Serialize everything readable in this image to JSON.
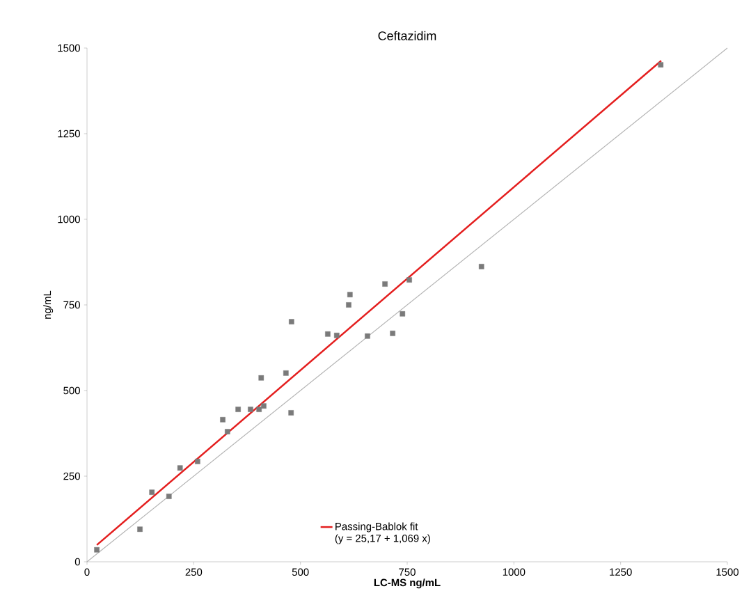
{
  "chart_data": {
    "type": "scatter",
    "title": "Ceftazidim",
    "xlabel": "LC-MS  ng/mL",
    "ylabel": "ng/mL",
    "xlim": [
      0,
      1500
    ],
    "ylim": [
      0,
      1500
    ],
    "xticks": [
      0,
      250,
      500,
      750,
      1000,
      1250,
      1500
    ],
    "yticks": [
      0,
      250,
      500,
      750,
      1000,
      1250,
      1500
    ],
    "grid": false,
    "legend": "bottom",
    "annotations": [
      "(y = 25,17 + 1,069 x)"
    ],
    "series": [
      {
        "type": "line",
        "color": "#b4b4b4",
        "marker": "none",
        "x": [
          0,
          1500
        ],
        "values": [
          0,
          1500
        ]
      },
      {
        "color": "#7a7a7a",
        "marker": "square",
        "x": [
          23,
          124,
          152,
          192,
          218,
          259,
          318,
          329,
          354,
          383,
          403,
          408,
          414,
          466,
          478,
          479,
          564,
          585,
          613,
          616,
          657,
          698,
          716,
          739,
          755,
          924,
          1344
        ],
        "values": [
          35,
          95,
          203,
          191,
          274,
          293,
          415,
          380,
          445,
          445,
          445,
          537,
          455,
          551,
          435,
          701,
          665,
          661,
          750,
          780,
          659,
          811,
          667,
          724,
          823,
          862,
          1451
        ]
      },
      {
        "type": "line",
        "name": "Passing-Bablok fit",
        "color": "#e41e1e",
        "marker": "none",
        "x": [
          23,
          1345
        ],
        "values": [
          49,
          1463
        ]
      }
    ]
  }
}
